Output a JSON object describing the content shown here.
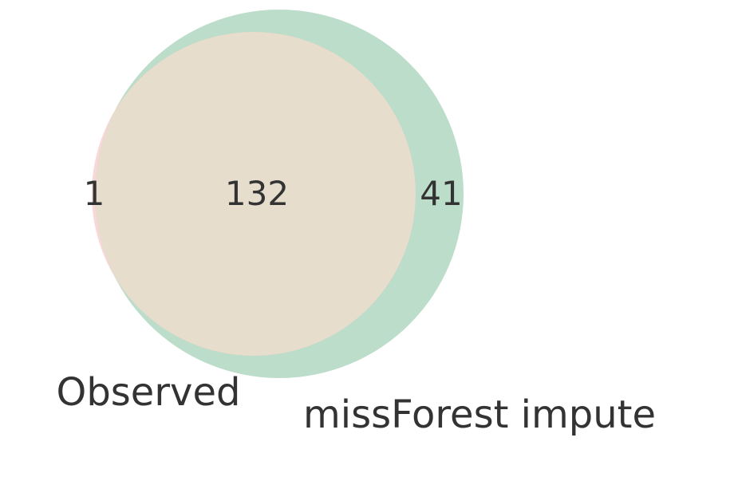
{
  "chart_data": {
    "type": "venn",
    "title": "",
    "sets": [
      {
        "name": "Observed",
        "color": "#f4a6b0"
      },
      {
        "name": "missForest impute",
        "color": "#6ab488"
      }
    ],
    "regions": {
      "only_observed": "1",
      "both": "132",
      "only_missforest": "41"
    },
    "overlap_color": "#e6ddcd",
    "alpha": 0.45
  }
}
